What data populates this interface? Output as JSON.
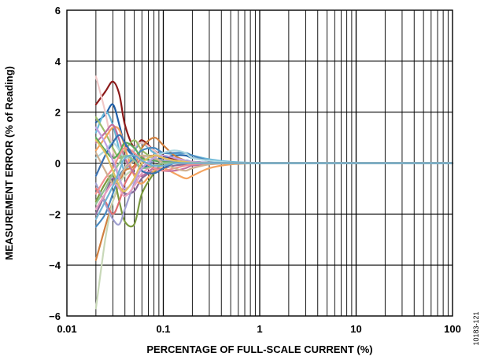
{
  "chart_data": {
    "type": "line",
    "title": "",
    "xlabel": "PERCENTAGE OF FULL-SCALE CURRENT (%)",
    "ylabel": "MEASUREMENT ERROR (% of Reading)",
    "xscale": "log",
    "xlim": [
      0.01,
      100
    ],
    "ylim": [
      -6,
      6
    ],
    "grid": true,
    "legend": "none",
    "x_tick_labels": [
      "0.01",
      "0.1",
      "1",
      "10",
      "100"
    ],
    "y_tick_labels": [
      "−6",
      "−4",
      "−2",
      "0",
      "2",
      "4",
      "6"
    ],
    "y_tick_values": [
      -6,
      -4,
      -2,
      0,
      2,
      4,
      6
    ],
    "x_tick_values": [
      0.01,
      0.1,
      1,
      10,
      100
    ],
    "figure_id": "10183-121",
    "x": [
      0.02,
      0.025,
      0.03,
      0.035,
      0.04,
      0.05,
      0.06,
      0.08,
      0.1,
      0.13,
      0.17,
      0.2,
      0.3,
      0.5,
      1,
      2,
      5,
      10,
      20,
      50,
      100
    ],
    "series": [
      {
        "color": "#8b1a1a",
        "values": [
          2.3,
          2.8,
          3.2,
          2.7,
          1.5,
          0.6,
          0.9,
          0.5,
          0.3,
          0.15,
          0.1,
          0.05,
          0.02,
          0,
          0,
          0,
          0,
          0,
          0,
          0,
          0
        ]
      },
      {
        "color": "#1f5fa8",
        "values": [
          1.6,
          1.9,
          2.3,
          1.5,
          0.7,
          0.2,
          -0.2,
          0.1,
          0.2,
          0.3,
          0.3,
          0.2,
          0.1,
          0.02,
          0,
          0,
          0,
          0,
          0,
          0,
          0
        ]
      },
      {
        "color": "#6bb8d8",
        "values": [
          1.2,
          2.0,
          1.5,
          0.5,
          -0.3,
          0.5,
          0.8,
          0.4,
          0.4,
          0.35,
          0.4,
          0.3,
          0.15,
          0.05,
          0,
          0,
          0,
          0,
          0,
          0,
          0
        ]
      },
      {
        "color": "#f0c8c8",
        "values": [
          3.4,
          2.0,
          0.5,
          -0.5,
          -0.2,
          0.6,
          0.8,
          0.5,
          0.2,
          0.1,
          0.1,
          0.05,
          0.02,
          0,
          0,
          0,
          0,
          0,
          0,
          0,
          0
        ]
      },
      {
        "color": "#d08040",
        "values": [
          -3.8,
          -2.5,
          -1.5,
          -0.8,
          -0.3,
          -0.1,
          0.6,
          1.0,
          0.7,
          0.3,
          0.1,
          0.05,
          0.02,
          0,
          0,
          0,
          0,
          0,
          0,
          0,
          0
        ]
      },
      {
        "color": "#c8d8b8",
        "values": [
          -5.7,
          -3.0,
          -1.5,
          -0.8,
          -0.5,
          -0.2,
          0.1,
          0.1,
          0.05,
          0.02,
          0.01,
          0,
          0,
          0,
          0,
          0,
          0,
          0,
          0,
          0,
          0
        ]
      },
      {
        "color": "#7a9a40",
        "values": [
          -1.5,
          -0.8,
          -0.5,
          -1.5,
          -2.3,
          -2.4,
          -1.2,
          -0.4,
          0,
          0,
          0,
          0,
          0,
          0,
          0,
          0,
          0,
          0,
          0,
          0,
          0
        ]
      },
      {
        "color": "#8a6a9a",
        "values": [
          -2.0,
          -1.2,
          -0.6,
          -0.9,
          -1.2,
          -1.1,
          -0.6,
          -0.3,
          -0.2,
          -0.1,
          -0.05,
          -0.02,
          -0.01,
          0,
          0,
          0,
          0,
          0,
          0,
          0,
          0
        ]
      },
      {
        "color": "#e07070",
        "values": [
          -1.0,
          -1.5,
          -2.0,
          -1.5,
          -0.8,
          -0.2,
          0.2,
          0.3,
          0.2,
          0.1,
          0.05,
          0.02,
          0.01,
          0,
          0,
          0,
          0,
          0,
          0,
          0,
          0
        ]
      },
      {
        "color": "#9bbd6a",
        "values": [
          1.8,
          1.2,
          0.6,
          0.2,
          0.5,
          0.9,
          0.5,
          0.2,
          0.1,
          0.05,
          0.02,
          0.01,
          0,
          0,
          0,
          0,
          0,
          0,
          0,
          0,
          0
        ]
      },
      {
        "color": "#f4a460",
        "values": [
          0.5,
          1.0,
          1.4,
          1.3,
          0.6,
          -0.5,
          -0.8,
          -0.3,
          -0.2,
          -0.4,
          -0.6,
          -0.5,
          -0.2,
          -0.05,
          0,
          0,
          0,
          0,
          0,
          0,
          0
        ]
      },
      {
        "color": "#4a8ac0",
        "values": [
          -2.5,
          -2.0,
          -1.2,
          -0.5,
          -0.2,
          0.2,
          0.5,
          0.6,
          0.4,
          0.4,
          0.4,
          0.3,
          0.1,
          0.02,
          0,
          0,
          0,
          0,
          0,
          0,
          0
        ]
      },
      {
        "color": "#c070a0",
        "values": [
          0.8,
          1.2,
          1.5,
          0.9,
          0.2,
          -0.4,
          -0.5,
          -0.2,
          -0.3,
          -0.3,
          -0.2,
          -0.1,
          -0.05,
          0,
          0,
          0,
          0,
          0,
          0,
          0,
          0
        ]
      },
      {
        "color": "#a0a0d0",
        "values": [
          -0.8,
          -1.6,
          -2.2,
          -2.4,
          -1.8,
          -0.8,
          -0.2,
          0.1,
          0.1,
          0.05,
          0.02,
          0,
          0,
          0,
          0,
          0,
          0,
          0,
          0,
          0,
          0
        ]
      },
      {
        "color": "#b0d8e0",
        "values": [
          0.2,
          0.5,
          0.8,
          0.5,
          0.2,
          0.3,
          0.3,
          0.2,
          0.4,
          0.5,
          0.4,
          0.2,
          0.1,
          0.02,
          0,
          0,
          0,
          0,
          0,
          0,
          0
        ]
      },
      {
        "color": "#e8a0c0",
        "values": [
          -1.8,
          -1.2,
          -0.8,
          -1.0,
          -1.3,
          -0.9,
          -0.4,
          -0.1,
          0,
          0,
          0,
          0,
          0,
          0,
          0,
          0,
          0,
          0,
          0,
          0,
          0
        ]
      },
      {
        "color": "#5aa85a",
        "values": [
          1.0,
          0.5,
          0.2,
          0.4,
          0.8,
          0.6,
          0.2,
          0.1,
          0.05,
          0.02,
          0.01,
          0,
          0,
          0,
          0,
          0,
          0,
          0,
          0,
          0,
          0
        ]
      },
      {
        "color": "#f09090",
        "values": [
          -1.2,
          -0.6,
          -0.2,
          0.3,
          0.6,
          0.4,
          0.1,
          -0.2,
          -0.3,
          -0.2,
          -0.1,
          -0.05,
          -0.02,
          0,
          0,
          0,
          0,
          0,
          0,
          0,
          0
        ]
      },
      {
        "color": "#d0b090",
        "values": [
          0.4,
          -0.3,
          -0.8,
          -0.6,
          -0.2,
          0.1,
          0.3,
          0.2,
          0,
          -0.2,
          -0.3,
          -0.2,
          -0.05,
          0,
          0,
          0,
          0,
          0,
          0,
          0,
          0
        ]
      },
      {
        "color": "#3a70b0",
        "values": [
          -0.5,
          0.3,
          0.8,
          1.1,
          0.8,
          0.2,
          -0.3,
          -0.4,
          -0.2,
          0,
          0.1,
          0.05,
          0.02,
          0,
          0,
          0,
          0,
          0,
          0,
          0,
          0
        ]
      },
      {
        "color": "#90c090",
        "values": [
          -1.6,
          -1.0,
          -0.4,
          0,
          0.3,
          0.1,
          -0.2,
          -0.1,
          0,
          0,
          0,
          0,
          0,
          0,
          0,
          0,
          0,
          0,
          0,
          0,
          0
        ]
      },
      {
        "color": "#c0a0e0",
        "values": [
          1.4,
          0.8,
          0.1,
          -0.6,
          -1.0,
          -0.7,
          -0.2,
          0.2,
          0.3,
          0.2,
          0.1,
          0.05,
          0.01,
          0,
          0,
          0,
          0,
          0,
          0,
          0,
          0
        ]
      },
      {
        "color": "#e0c060",
        "values": [
          0.9,
          0.4,
          -0.3,
          -0.9,
          -1.1,
          -0.6,
          0,
          0.3,
          0.2,
          0.1,
          0.05,
          0.02,
          0,
          0,
          0,
          0,
          0,
          0,
          0,
          0,
          0
        ]
      },
      {
        "color": "#70b0d0",
        "values": [
          -2.2,
          -1.5,
          -0.9,
          -0.3,
          0.2,
          0.3,
          0.1,
          -0.1,
          -0.1,
          0,
          0,
          0,
          0,
          0,
          0,
          0,
          0,
          0,
          0,
          0,
          0
        ]
      }
    ]
  }
}
